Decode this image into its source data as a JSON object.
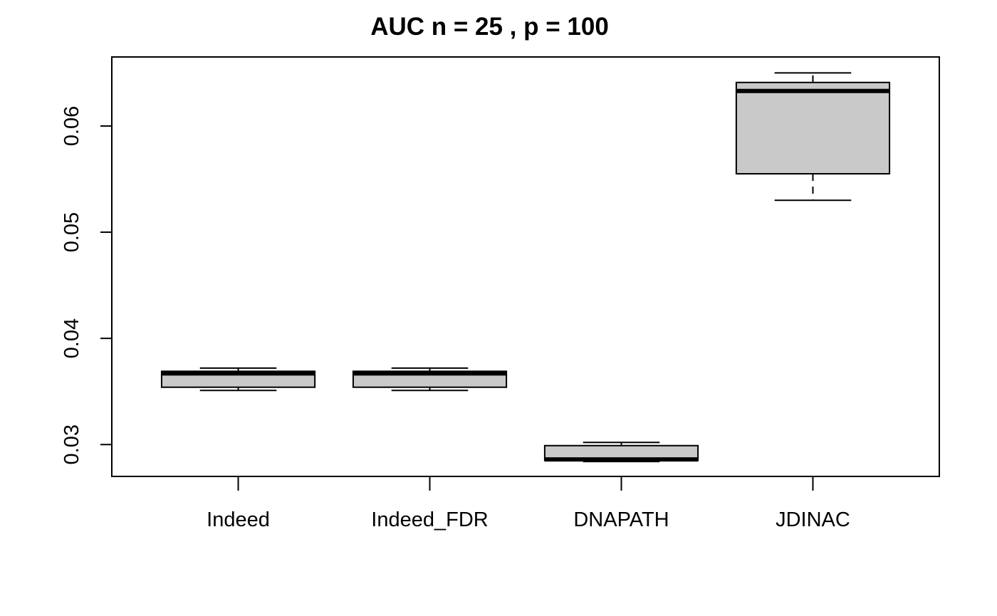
{
  "chart_data": {
    "type": "boxplot",
    "title": "AUC n = 25 , p = 100",
    "xlabel": "",
    "ylabel": "",
    "categories": [
      "Indeed",
      "Indeed_FDR",
      "DNAPATH",
      "JDINAC"
    ],
    "boxes": [
      {
        "category": "Indeed",
        "whisker_low": 0.0351,
        "q1": 0.0354,
        "median": 0.0367,
        "q3": 0.0369,
        "whisker_high": 0.0372
      },
      {
        "category": "Indeed_FDR",
        "whisker_low": 0.0351,
        "q1": 0.0354,
        "median": 0.0367,
        "q3": 0.0369,
        "whisker_high": 0.0372
      },
      {
        "category": "DNAPATH",
        "whisker_low": 0.0284,
        "q1": 0.0285,
        "median": 0.0286,
        "q3": 0.0299,
        "whisker_high": 0.0302
      },
      {
        "category": "JDINAC",
        "whisker_low": 0.053,
        "q1": 0.0555,
        "median": 0.0633,
        "q3": 0.0641,
        "whisker_high": 0.065
      }
    ],
    "yticks": [
      0.03,
      0.04,
      0.05,
      0.06
    ],
    "ytick_labels": [
      "0.03",
      "0.04",
      "0.05",
      "0.06"
    ],
    "ylim": [
      0.027,
      0.0665
    ],
    "grid": false,
    "colors": {
      "box_fill": "#c9c9c9",
      "stroke": "#000000"
    }
  }
}
